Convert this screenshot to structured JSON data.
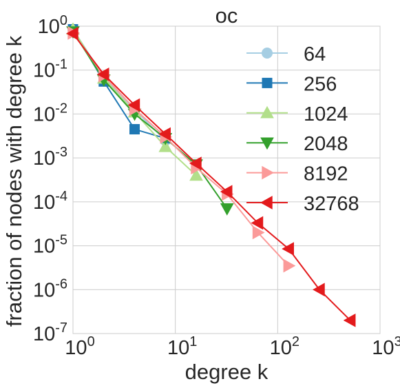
{
  "chart_data": {
    "type": "line",
    "title": "oc",
    "xlabel": "degree k",
    "ylabel": "fraction of nodes with degree k",
    "xscale": "log",
    "yscale": "log",
    "xlim": [
      1,
      1000
    ],
    "ylim": [
      1e-07,
      1
    ],
    "x_ticks": [
      {
        "value": 1,
        "base": "10",
        "exp": "0"
      },
      {
        "value": 10,
        "base": "10",
        "exp": "1"
      },
      {
        "value": 100,
        "base": "10",
        "exp": "2"
      },
      {
        "value": 1000,
        "base": "10",
        "exp": "3"
      }
    ],
    "y_ticks": [
      {
        "value": 1,
        "base": "10",
        "exp": "0"
      },
      {
        "value": 0.1,
        "base": "10",
        "exp": "-1"
      },
      {
        "value": 0.01,
        "base": "10",
        "exp": "-2"
      },
      {
        "value": 0.001,
        "base": "10",
        "exp": "-3"
      },
      {
        "value": 0.0001,
        "base": "10",
        "exp": "-4"
      },
      {
        "value": 1e-05,
        "base": "10",
        "exp": "-5"
      },
      {
        "value": 1e-06,
        "base": "10",
        "exp": "-6"
      },
      {
        "value": 1e-07,
        "base": "10",
        "exp": "-7"
      }
    ],
    "grid": true,
    "legend_position": "top-right",
    "series": [
      {
        "name": "64",
        "color": "#a6cee3",
        "marker": "circle",
        "x": [
          1,
          2,
          4,
          8
        ],
        "y": [
          0.85,
          0.07,
          0.0125,
          0.0025
        ]
      },
      {
        "name": "256",
        "color": "#1f78b4",
        "marker": "square",
        "x": [
          1,
          2,
          4,
          8
        ],
        "y": [
          0.85,
          0.055,
          0.0045,
          0.0028
        ]
      },
      {
        "name": "1024",
        "color": "#b2df8a",
        "marker": "triangle-up",
        "x": [
          1,
          2,
          4,
          8,
          16
        ],
        "y": [
          0.85,
          0.065,
          0.011,
          0.0018,
          0.0004
        ]
      },
      {
        "name": "2048",
        "color": "#33a02c",
        "marker": "triangle-down",
        "x": [
          1,
          2,
          4,
          8,
          16,
          32
        ],
        "y": [
          0.75,
          0.06,
          0.01,
          0.0028,
          0.0007,
          7e-05
        ]
      },
      {
        "name": "8192",
        "color": "#fb9a99",
        "marker": "triangle-right",
        "x": [
          1,
          2,
          4,
          8,
          16,
          32,
          64,
          128
        ],
        "y": [
          0.7,
          0.075,
          0.013,
          0.003,
          0.0006,
          0.00015,
          2e-05,
          3.5e-06
        ]
      },
      {
        "name": "32768",
        "color": "#e31a1c",
        "marker": "triangle-left",
        "x": [
          1,
          2,
          4,
          8,
          16,
          32,
          64,
          128,
          256,
          512
        ],
        "y": [
          0.68,
          0.08,
          0.016,
          0.0035,
          0.00075,
          0.00017,
          3.3e-05,
          8.5e-06,
          1e-06,
          2e-07
        ]
      }
    ]
  }
}
